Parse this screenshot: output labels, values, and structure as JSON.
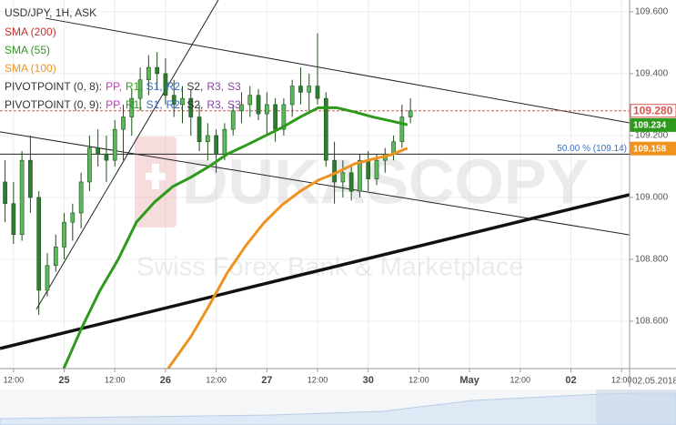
{
  "chart_data": {
    "type": "candlestick",
    "title": "USD/JPY, 1H, ASK",
    "watermark": "DUKASCOPY",
    "watermark_subtitle": "Swiss Forex Bank & Marketplace",
    "date_label": "02.05.2018",
    "up_color": "#5cb85c",
    "down_color": "#2e7d32",
    "grid": true,
    "xlim": [
      -3.2,
      145.9
    ],
    "ylim": [
      108.447,
      109.638
    ],
    "xticks": [
      {
        "value": 0,
        "label": "12:00"
      },
      {
        "value": 12,
        "label": "25"
      },
      {
        "value": 24,
        "label": "12:00"
      },
      {
        "value": 36,
        "label": "26"
      },
      {
        "value": 48,
        "label": "12:00"
      },
      {
        "value": 60,
        "label": "27"
      },
      {
        "value": 72,
        "label": "12:00"
      },
      {
        "value": 84,
        "label": "30"
      },
      {
        "value": 96,
        "label": "12:00"
      },
      {
        "value": 108,
        "label": "May"
      },
      {
        "value": 120,
        "label": "12:00"
      },
      {
        "value": 132,
        "label": "02"
      },
      {
        "value": 144,
        "label": "12:00"
      }
    ],
    "yticks": [
      {
        "value": 108.6,
        "label": "108.600"
      },
      {
        "value": 108.8,
        "label": "108.800"
      },
      {
        "value": 109.0,
        "label": "109.000"
      },
      {
        "value": 109.2,
        "label": "109.200"
      },
      {
        "value": 109.4,
        "label": "109.400"
      },
      {
        "value": 109.6,
        "label": "109.600"
      }
    ],
    "x": [
      -2,
      0,
      2,
      4,
      6,
      8,
      10,
      12,
      14,
      16,
      18,
      20,
      22,
      24,
      26,
      28,
      30,
      32,
      34,
      36,
      38,
      40,
      42,
      44,
      46,
      48,
      50,
      52,
      54,
      56,
      58,
      60,
      62,
      64,
      66,
      68,
      70,
      72,
      74,
      76,
      78,
      80,
      82,
      84,
      86,
      88,
      90,
      92,
      94
    ],
    "open": [
      109.05,
      108.98,
      108.88,
      109.12,
      109.0,
      108.7,
      108.78,
      108.84,
      108.92,
      108.95,
      109.05,
      109.16,
      109.14,
      109.12,
      109.22,
      109.26,
      109.32,
      109.38,
      109.42,
      109.4,
      109.33,
      109.3,
      109.32,
      109.26,
      109.18,
      109.2,
      109.14,
      109.22,
      109.28,
      109.3,
      109.33,
      109.27,
      109.3,
      109.22,
      109.3,
      109.36,
      109.34,
      109.36,
      109.32,
      109.12,
      109.05,
      109.08,
      109.02,
      109.12,
      109.06,
      109.12,
      109.14,
      109.18,
      109.26
    ],
    "high": [
      109.12,
      109.05,
      109.15,
      109.2,
      109.02,
      108.82,
      108.88,
      108.95,
      108.98,
      109.08,
      109.2,
      109.22,
      109.2,
      109.25,
      109.3,
      109.35,
      109.42,
      109.46,
      109.47,
      109.45,
      109.38,
      109.36,
      109.35,
      109.3,
      109.24,
      109.22,
      109.24,
      109.3,
      109.34,
      109.36,
      109.35,
      109.34,
      109.32,
      109.32,
      109.38,
      109.42,
      109.4,
      109.53,
      109.34,
      109.18,
      109.12,
      109.1,
      109.14,
      109.15,
      109.14,
      109.16,
      109.2,
      109.3,
      109.32
    ],
    "low": [
      108.92,
      108.85,
      108.86,
      108.95,
      108.62,
      108.68,
      108.76,
      108.8,
      108.86,
      108.9,
      109.02,
      109.1,
      109.05,
      109.1,
      109.12,
      109.2,
      109.28,
      109.33,
      109.35,
      109.3,
      109.26,
      109.24,
      109.2,
      109.15,
      109.12,
      109.08,
      109.12,
      109.2,
      109.24,
      109.26,
      109.25,
      109.2,
      109.18,
      109.2,
      109.26,
      109.3,
      109.28,
      109.3,
      109.1,
      108.98,
      109.0,
      108.99,
      109.0,
      109.02,
      109.04,
      109.08,
      109.12,
      109.16,
      109.24
    ],
    "close": [
      108.98,
      108.88,
      109.12,
      109.0,
      108.7,
      108.78,
      108.84,
      108.92,
      108.95,
      109.05,
      109.16,
      109.14,
      109.12,
      109.22,
      109.26,
      109.32,
      109.38,
      109.42,
      109.4,
      109.33,
      109.3,
      109.32,
      109.26,
      109.18,
      109.2,
      109.14,
      109.22,
      109.28,
      109.3,
      109.33,
      109.27,
      109.3,
      109.22,
      109.3,
      109.36,
      109.34,
      109.36,
      109.32,
      109.12,
      109.05,
      109.08,
      109.02,
      109.12,
      109.06,
      109.12,
      109.14,
      109.18,
      109.26,
      109.28
    ],
    "series": [
      {
        "name": "SMA (200)",
        "color": "#c9302c",
        "x": [],
        "values": []
      },
      {
        "name": "SMA (55)",
        "color": "#2e9a1c",
        "x": [
          11.9,
          16.2,
          20.5,
          24.8,
          29.1,
          33.4,
          37.7,
          42.0,
          46.3,
          50.6,
          55.0,
          59.3,
          63.6,
          67.9,
          72.2,
          76.5,
          80.8,
          85.1,
          89.4,
          93.3
        ],
        "values": [
          108.447,
          108.58,
          108.7,
          108.8,
          108.92,
          108.985,
          109.035,
          109.065,
          109.1,
          109.14,
          109.168,
          109.197,
          109.226,
          109.26,
          109.29,
          109.29,
          109.276,
          109.26,
          109.247,
          109.235
        ]
      },
      {
        "name": "SMA (100)",
        "color": "#f0921e",
        "x": [
          36.6,
          42.0,
          46.3,
          50.6,
          55.0,
          59.3,
          63.6,
          67.9,
          72.2,
          76.5,
          80.8,
          85.1,
          89.4,
          93.3
        ],
        "values": [
          108.447,
          108.55,
          108.65,
          108.756,
          108.844,
          108.918,
          108.976,
          109.02,
          109.056,
          109.08,
          109.109,
          109.124,
          109.138,
          109.159
        ]
      }
    ],
    "pivots": [
      {
        "name": "PIVOTPOINT (0, 8):",
        "items": [
          "PP,",
          "R1,",
          "S1,",
          "R2,",
          "S2,",
          "R3,",
          "S3"
        ]
      },
      {
        "name": "PIVOTPOINT (0, 9):",
        "items": [
          "PP,",
          "R1,",
          "S1,",
          "R2,",
          "S2,",
          "R3,",
          "S3"
        ]
      }
    ],
    "pivot_colors": [
      "#c03cc0",
      "#2e9a1c",
      "#3a6fc0",
      "#3a6fc0",
      "#333333",
      "#8e44ad",
      "#8e44ad"
    ],
    "trend_lines": [
      {
        "x": [
          -3.2,
          145.9
        ],
        "y": [
          109.212,
          108.879
        ]
      },
      {
        "x": [
          7.6,
          145.9
        ],
        "y": [
          109.579,
          109.241
        ]
      },
      {
        "x": [
          5.4,
          48.5
        ],
        "y": [
          108.638,
          109.638
        ]
      }
    ],
    "support_line": {
      "x": [
        -3.2,
        145.9
      ],
      "y": [
        108.512,
        109.009
      ]
    },
    "fib_level": {
      "value": 109.14,
      "label": "50.00 % (109.14)",
      "color": "#3a6fc0"
    },
    "price_marks": {
      "values": [
        109.28,
        109.234,
        109.158
      ],
      "value_labels": [
        "109.280",
        "109.234",
        "109.158"
      ],
      "colors": [
        "#d9534f",
        "#2e9a1c",
        "#f0921e"
      ]
    }
  }
}
